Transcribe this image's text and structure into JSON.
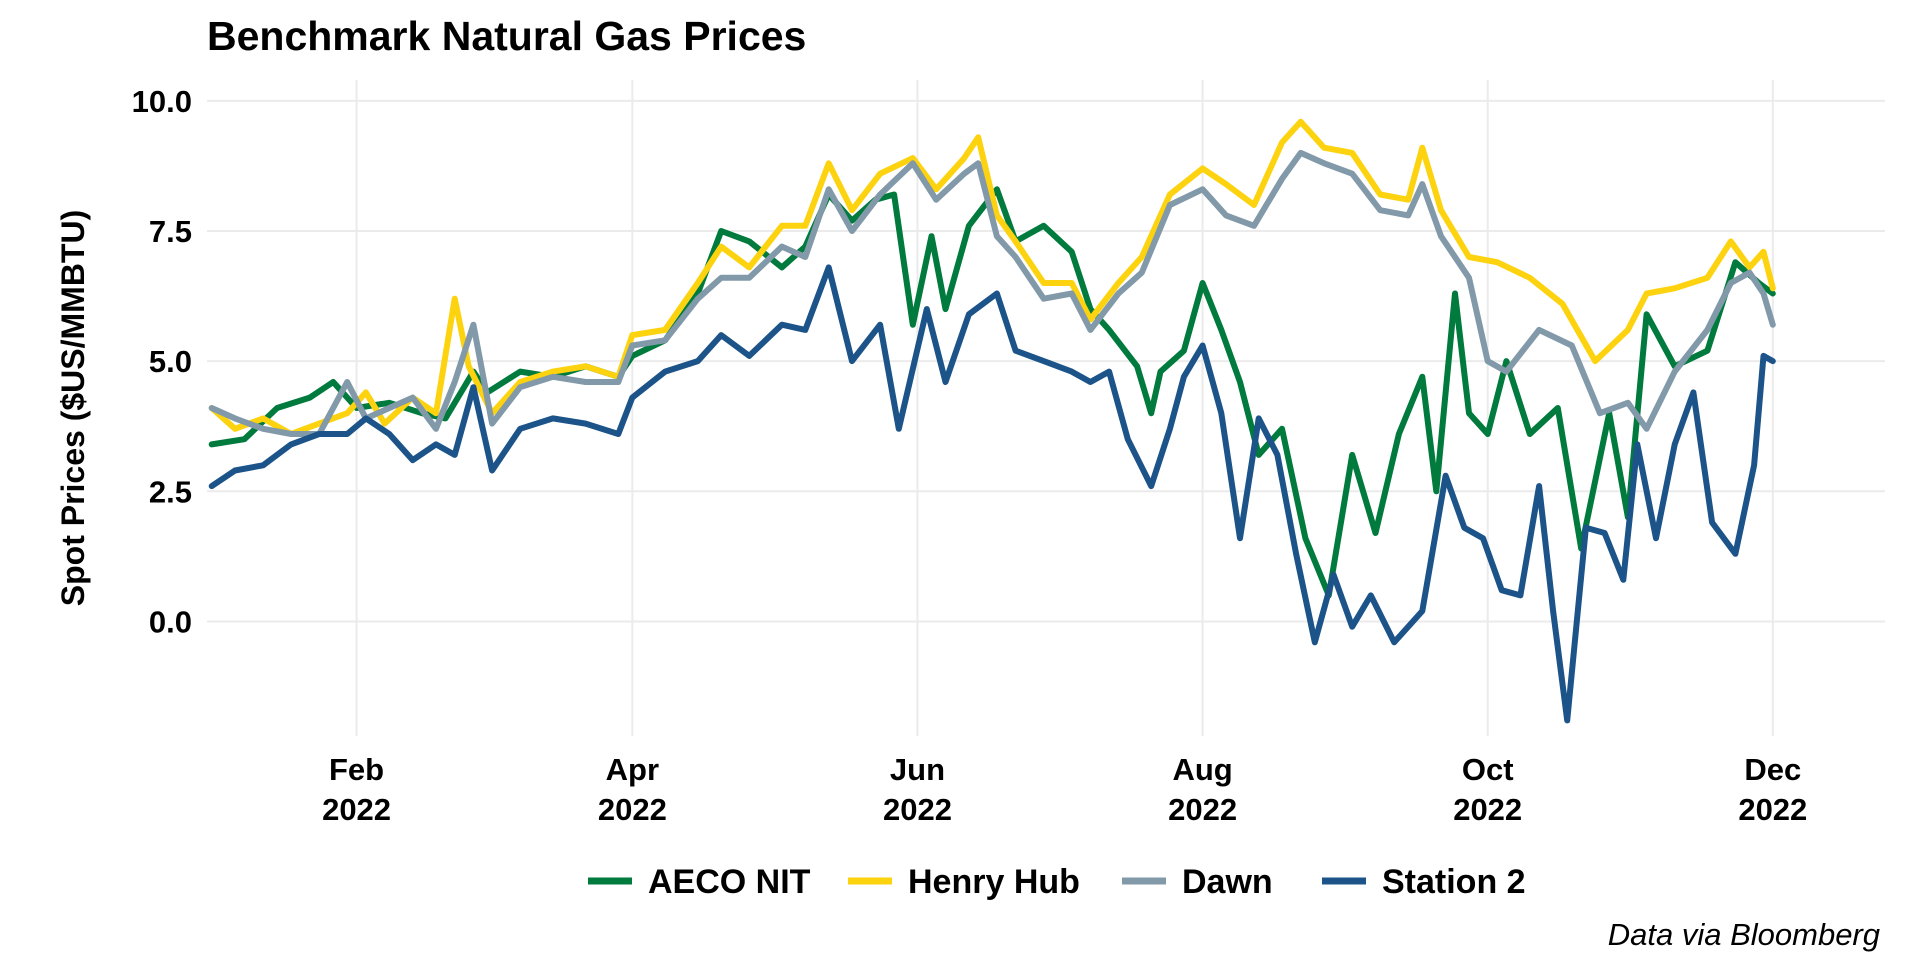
{
  "chart_data": {
    "type": "line",
    "title": "Benchmark Natural Gas Prices",
    "xlabel": "",
    "ylabel": "Spot Prices ($US/MMBTU)",
    "caption": "Data via Bloomberg",
    "x_range": [
      "2021-12-31",
      "2022-12-25"
    ],
    "ylim": [
      -2.2,
      10.4
    ],
    "y_ticks": [
      {
        "value": 0.0,
        "label": "0.0"
      },
      {
        "value": 2.5,
        "label": "2.5"
      },
      {
        "value": 5.0,
        "label": "5.0"
      },
      {
        "value": 7.5,
        "label": "7.5"
      },
      {
        "value": 10.0,
        "label": "10.0"
      }
    ],
    "x_ticks": [
      {
        "date": "2022-02-01",
        "month": "Feb",
        "year": "2022"
      },
      {
        "date": "2022-04-01",
        "month": "Apr",
        "year": "2022"
      },
      {
        "date": "2022-06-01",
        "month": "Jun",
        "year": "2022"
      },
      {
        "date": "2022-08-01",
        "month": "Aug",
        "year": "2022"
      },
      {
        "date": "2022-10-01",
        "month": "Oct",
        "year": "2022"
      },
      {
        "date": "2022-12-01",
        "month": "Dec",
        "year": "2022"
      }
    ],
    "grid": true,
    "legend_position": "bottom",
    "series": [
      {
        "name": "AECO NIT",
        "color": "#007a3d",
        "points": [
          [
            "2022-01-01",
            3.4
          ],
          [
            "2022-01-08",
            3.5
          ],
          [
            "2022-01-15",
            4.1
          ],
          [
            "2022-01-22",
            4.3
          ],
          [
            "2022-01-27",
            4.6
          ],
          [
            "2022-02-01",
            4.1
          ],
          [
            "2022-02-08",
            4.2
          ],
          [
            "2022-02-15",
            4.0
          ],
          [
            "2022-02-20",
            3.9
          ],
          [
            "2022-02-26",
            4.8
          ],
          [
            "2022-03-01",
            4.4
          ],
          [
            "2022-03-08",
            4.8
          ],
          [
            "2022-03-15",
            4.7
          ],
          [
            "2022-03-22",
            4.9
          ],
          [
            "2022-03-29",
            4.7
          ],
          [
            "2022-04-01",
            5.1
          ],
          [
            "2022-04-08",
            5.4
          ],
          [
            "2022-04-15",
            6.3
          ],
          [
            "2022-04-20",
            7.5
          ],
          [
            "2022-04-26",
            7.3
          ],
          [
            "2022-05-03",
            6.8
          ],
          [
            "2022-05-08",
            7.2
          ],
          [
            "2022-05-13",
            8.2
          ],
          [
            "2022-05-18",
            7.7
          ],
          [
            "2022-05-23",
            8.1
          ],
          [
            "2022-05-27",
            8.2
          ],
          [
            "2022-05-31",
            5.7
          ],
          [
            "2022-06-04",
            7.4
          ],
          [
            "2022-06-07",
            6.0
          ],
          [
            "2022-06-12",
            7.6
          ],
          [
            "2022-06-18",
            8.3
          ],
          [
            "2022-06-22",
            7.3
          ],
          [
            "2022-06-28",
            7.6
          ],
          [
            "2022-07-04",
            7.1
          ],
          [
            "2022-07-08",
            6.0
          ],
          [
            "2022-07-12",
            5.6
          ],
          [
            "2022-07-18",
            4.9
          ],
          [
            "2022-07-21",
            4.0
          ],
          [
            "2022-07-23",
            4.8
          ],
          [
            "2022-07-28",
            5.2
          ],
          [
            "2022-08-01",
            6.5
          ],
          [
            "2022-08-05",
            5.6
          ],
          [
            "2022-08-09",
            4.6
          ],
          [
            "2022-08-13",
            3.2
          ],
          [
            "2022-08-18",
            3.7
          ],
          [
            "2022-08-23",
            1.6
          ],
          [
            "2022-08-28",
            0.5
          ],
          [
            "2022-09-02",
            3.2
          ],
          [
            "2022-09-07",
            1.7
          ],
          [
            "2022-09-12",
            3.6
          ],
          [
            "2022-09-17",
            4.7
          ],
          [
            "2022-09-20",
            2.5
          ],
          [
            "2022-09-24",
            6.3
          ],
          [
            "2022-09-27",
            4.0
          ],
          [
            "2022-10-01",
            3.6
          ],
          [
            "2022-10-05",
            5.0
          ],
          [
            "2022-10-10",
            3.6
          ],
          [
            "2022-10-16",
            4.1
          ],
          [
            "2022-10-21",
            1.4
          ],
          [
            "2022-10-27",
            4.0
          ],
          [
            "2022-10-31",
            2.0
          ],
          [
            "2022-11-04",
            5.9
          ],
          [
            "2022-11-10",
            4.9
          ],
          [
            "2022-11-17",
            5.2
          ],
          [
            "2022-11-23",
            6.9
          ],
          [
            "2022-11-28",
            6.5
          ],
          [
            "2022-12-01",
            6.3
          ]
        ]
      },
      {
        "name": "Henry Hub",
        "color": "#fdd20e",
        "points": [
          [
            "2022-01-01",
            4.1
          ],
          [
            "2022-01-06",
            3.7
          ],
          [
            "2022-01-12",
            3.9
          ],
          [
            "2022-01-18",
            3.6
          ],
          [
            "2022-01-24",
            3.8
          ],
          [
            "2022-01-30",
            4.0
          ],
          [
            "2022-02-03",
            4.4
          ],
          [
            "2022-02-07",
            3.8
          ],
          [
            "2022-02-13",
            4.3
          ],
          [
            "2022-02-18",
            4.0
          ],
          [
            "2022-02-22",
            6.2
          ],
          [
            "2022-02-25",
            4.9
          ],
          [
            "2022-03-02",
            4.0
          ],
          [
            "2022-03-08",
            4.6
          ],
          [
            "2022-03-15",
            4.8
          ],
          [
            "2022-03-22",
            4.9
          ],
          [
            "2022-03-29",
            4.7
          ],
          [
            "2022-04-01",
            5.5
          ],
          [
            "2022-04-08",
            5.6
          ],
          [
            "2022-04-15",
            6.5
          ],
          [
            "2022-04-20",
            7.2
          ],
          [
            "2022-04-26",
            6.8
          ],
          [
            "2022-05-03",
            7.6
          ],
          [
            "2022-05-08",
            7.6
          ],
          [
            "2022-05-13",
            8.8
          ],
          [
            "2022-05-18",
            7.9
          ],
          [
            "2022-05-24",
            8.6
          ],
          [
            "2022-05-31",
            8.9
          ],
          [
            "2022-06-05",
            8.3
          ],
          [
            "2022-06-11",
            8.9
          ],
          [
            "2022-06-14",
            9.3
          ],
          [
            "2022-06-18",
            7.8
          ],
          [
            "2022-06-22",
            7.3
          ],
          [
            "2022-06-28",
            6.5
          ],
          [
            "2022-07-04",
            6.5
          ],
          [
            "2022-07-08",
            5.8
          ],
          [
            "2022-07-14",
            6.5
          ],
          [
            "2022-07-19",
            7.0
          ],
          [
            "2022-07-25",
            8.2
          ],
          [
            "2022-08-01",
            8.7
          ],
          [
            "2022-08-06",
            8.4
          ],
          [
            "2022-08-12",
            8.0
          ],
          [
            "2022-08-18",
            9.2
          ],
          [
            "2022-08-22",
            9.6
          ],
          [
            "2022-08-27",
            9.1
          ],
          [
            "2022-09-02",
            9.0
          ],
          [
            "2022-09-08",
            8.2
          ],
          [
            "2022-09-14",
            8.1
          ],
          [
            "2022-09-17",
            9.1
          ],
          [
            "2022-09-21",
            7.9
          ],
          [
            "2022-09-27",
            7.0
          ],
          [
            "2022-10-03",
            6.9
          ],
          [
            "2022-10-10",
            6.6
          ],
          [
            "2022-10-17",
            6.1
          ],
          [
            "2022-10-24",
            5.0
          ],
          [
            "2022-10-31",
            5.6
          ],
          [
            "2022-11-04",
            6.3
          ],
          [
            "2022-11-10",
            6.4
          ],
          [
            "2022-11-17",
            6.6
          ],
          [
            "2022-11-22",
            7.3
          ],
          [
            "2022-11-26",
            6.8
          ],
          [
            "2022-11-29",
            7.1
          ],
          [
            "2022-12-01",
            6.4
          ]
        ]
      },
      {
        "name": "Dawn",
        "color": "#8199a9",
        "points": [
          [
            "2022-01-01",
            4.1
          ],
          [
            "2022-01-06",
            3.9
          ],
          [
            "2022-01-12",
            3.7
          ],
          [
            "2022-01-18",
            3.6
          ],
          [
            "2022-01-24",
            3.6
          ],
          [
            "2022-01-30",
            4.6
          ],
          [
            "2022-02-03",
            3.9
          ],
          [
            "2022-02-08",
            4.1
          ],
          [
            "2022-02-13",
            4.3
          ],
          [
            "2022-02-18",
            3.7
          ],
          [
            "2022-02-22",
            4.6
          ],
          [
            "2022-02-26",
            5.7
          ],
          [
            "2022-03-02",
            3.8
          ],
          [
            "2022-03-08",
            4.5
          ],
          [
            "2022-03-15",
            4.7
          ],
          [
            "2022-03-22",
            4.6
          ],
          [
            "2022-03-29",
            4.6
          ],
          [
            "2022-04-01",
            5.3
          ],
          [
            "2022-04-08",
            5.4
          ],
          [
            "2022-04-15",
            6.2
          ],
          [
            "2022-04-20",
            6.6
          ],
          [
            "2022-04-26",
            6.6
          ],
          [
            "2022-05-03",
            7.2
          ],
          [
            "2022-05-08",
            7.0
          ],
          [
            "2022-05-13",
            8.3
          ],
          [
            "2022-05-18",
            7.5
          ],
          [
            "2022-05-24",
            8.2
          ],
          [
            "2022-05-31",
            8.8
          ],
          [
            "2022-06-05",
            8.1
          ],
          [
            "2022-06-11",
            8.6
          ],
          [
            "2022-06-14",
            8.8
          ],
          [
            "2022-06-18",
            7.4
          ],
          [
            "2022-06-22",
            7.0
          ],
          [
            "2022-06-28",
            6.2
          ],
          [
            "2022-07-04",
            6.3
          ],
          [
            "2022-07-08",
            5.6
          ],
          [
            "2022-07-14",
            6.3
          ],
          [
            "2022-07-19",
            6.7
          ],
          [
            "2022-07-25",
            8.0
          ],
          [
            "2022-08-01",
            8.3
          ],
          [
            "2022-08-06",
            7.8
          ],
          [
            "2022-08-12",
            7.6
          ],
          [
            "2022-08-18",
            8.5
          ],
          [
            "2022-08-22",
            9.0
          ],
          [
            "2022-08-27",
            8.8
          ],
          [
            "2022-09-02",
            8.6
          ],
          [
            "2022-09-08",
            7.9
          ],
          [
            "2022-09-14",
            7.8
          ],
          [
            "2022-09-17",
            8.4
          ],
          [
            "2022-09-21",
            7.4
          ],
          [
            "2022-09-27",
            6.6
          ],
          [
            "2022-10-01",
            5.0
          ],
          [
            "2022-10-05",
            4.8
          ],
          [
            "2022-10-12",
            5.6
          ],
          [
            "2022-10-19",
            5.3
          ],
          [
            "2022-10-25",
            4.0
          ],
          [
            "2022-10-31",
            4.2
          ],
          [
            "2022-11-04",
            3.7
          ],
          [
            "2022-11-10",
            4.8
          ],
          [
            "2022-11-17",
            5.6
          ],
          [
            "2022-11-22",
            6.5
          ],
          [
            "2022-11-26",
            6.7
          ],
          [
            "2022-11-29",
            6.3
          ],
          [
            "2022-12-01",
            5.7
          ]
        ]
      },
      {
        "name": "Station 2",
        "color": "#1c5489",
        "points": [
          [
            "2022-01-01",
            2.6
          ],
          [
            "2022-01-06",
            2.9
          ],
          [
            "2022-01-12",
            3.0
          ],
          [
            "2022-01-18",
            3.4
          ],
          [
            "2022-01-24",
            3.6
          ],
          [
            "2022-01-30",
            3.6
          ],
          [
            "2022-02-03",
            3.9
          ],
          [
            "2022-02-08",
            3.6
          ],
          [
            "2022-02-13",
            3.1
          ],
          [
            "2022-02-18",
            3.4
          ],
          [
            "2022-02-22",
            3.2
          ],
          [
            "2022-02-26",
            4.5
          ],
          [
            "2022-03-02",
            2.9
          ],
          [
            "2022-03-08",
            3.7
          ],
          [
            "2022-03-15",
            3.9
          ],
          [
            "2022-03-22",
            3.8
          ],
          [
            "2022-03-29",
            3.6
          ],
          [
            "2022-04-01",
            4.3
          ],
          [
            "2022-04-08",
            4.8
          ],
          [
            "2022-04-15",
            5.0
          ],
          [
            "2022-04-20",
            5.5
          ],
          [
            "2022-04-26",
            5.1
          ],
          [
            "2022-05-03",
            5.7
          ],
          [
            "2022-05-08",
            5.6
          ],
          [
            "2022-05-13",
            6.8
          ],
          [
            "2022-05-18",
            5.0
          ],
          [
            "2022-05-24",
            5.7
          ],
          [
            "2022-05-28",
            3.7
          ],
          [
            "2022-06-03",
            6.0
          ],
          [
            "2022-06-07",
            4.6
          ],
          [
            "2022-06-12",
            5.9
          ],
          [
            "2022-06-18",
            6.3
          ],
          [
            "2022-06-22",
            5.2
          ],
          [
            "2022-06-28",
            5.0
          ],
          [
            "2022-07-04",
            4.8
          ],
          [
            "2022-07-08",
            4.6
          ],
          [
            "2022-07-12",
            4.8
          ],
          [
            "2022-07-16",
            3.5
          ],
          [
            "2022-07-21",
            2.6
          ],
          [
            "2022-07-25",
            3.7
          ],
          [
            "2022-07-28",
            4.7
          ],
          [
            "2022-08-01",
            5.3
          ],
          [
            "2022-08-05",
            4.0
          ],
          [
            "2022-08-09",
            1.6
          ],
          [
            "2022-08-13",
            3.9
          ],
          [
            "2022-08-17",
            3.2
          ],
          [
            "2022-08-21",
            1.3
          ],
          [
            "2022-08-25",
            -0.4
          ],
          [
            "2022-08-29",
            0.9
          ],
          [
            "2022-09-02",
            -0.1
          ],
          [
            "2022-09-06",
            0.5
          ],
          [
            "2022-09-11",
            -0.4
          ],
          [
            "2022-09-17",
            0.2
          ],
          [
            "2022-09-22",
            2.8
          ],
          [
            "2022-09-26",
            1.8
          ],
          [
            "2022-09-30",
            1.6
          ],
          [
            "2022-10-04",
            0.6
          ],
          [
            "2022-10-08",
            0.5
          ],
          [
            "2022-10-12",
            2.6
          ],
          [
            "2022-10-15",
            0.2
          ],
          [
            "2022-10-18",
            -1.9
          ],
          [
            "2022-10-22",
            1.8
          ],
          [
            "2022-10-26",
            1.7
          ],
          [
            "2022-10-30",
            0.8
          ],
          [
            "2022-11-02",
            3.4
          ],
          [
            "2022-11-06",
            1.6
          ],
          [
            "2022-11-10",
            3.4
          ],
          [
            "2022-11-14",
            4.4
          ],
          [
            "2022-11-18",
            1.9
          ],
          [
            "2022-11-23",
            1.3
          ],
          [
            "2022-11-27",
            3.0
          ],
          [
            "2022-11-29",
            5.1
          ],
          [
            "2022-12-01",
            5.0
          ]
        ]
      }
    ]
  }
}
